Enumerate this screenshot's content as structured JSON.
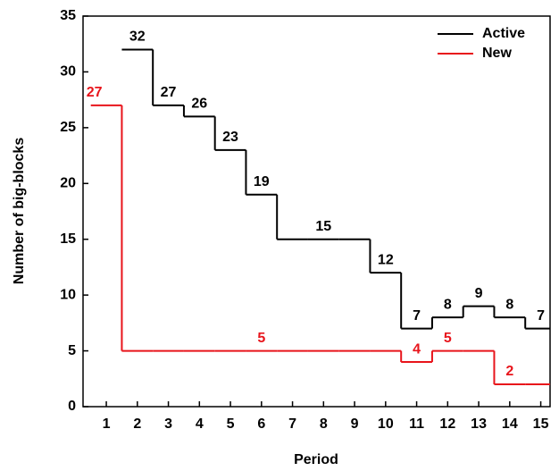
{
  "chart_data": {
    "type": "step",
    "x_label": "Period",
    "y_label": "Number of big-blocks",
    "x": [
      1,
      2,
      3,
      4,
      5,
      6,
      7,
      8,
      9,
      10,
      11,
      12,
      13,
      14,
      15
    ],
    "xlim": [
      0.25,
      15.3
    ],
    "xticks": [
      1,
      2,
      3,
      4,
      5,
      6,
      7,
      8,
      9,
      10,
      11,
      12,
      13,
      14,
      15
    ],
    "ylim": [
      0,
      35
    ],
    "yticks": [
      0,
      5,
      10,
      15,
      20,
      25,
      30,
      35
    ],
    "legend": "top-right",
    "series": [
      {
        "name": "Active",
        "color": "#000000",
        "values": [
          null,
          32,
          27,
          26,
          23,
          19,
          15,
          15,
          15,
          12,
          7,
          8,
          9,
          8,
          7
        ],
        "value_labels": [
          null,
          "32",
          "27",
          "26",
          "23",
          "19",
          null,
          "15",
          null,
          "12",
          "7",
          "8",
          "9",
          "8",
          "7"
        ]
      },
      {
        "name": "New",
        "color": "#e8141b",
        "values": [
          27,
          5,
          5,
          5,
          5,
          5,
          5,
          5,
          5,
          5,
          4,
          5,
          5,
          2,
          2
        ],
        "value_labels": [
          "27",
          null,
          null,
          null,
          null,
          "5",
          null,
          null,
          null,
          null,
          "4",
          "5",
          null,
          "2",
          null
        ]
      }
    ]
  }
}
